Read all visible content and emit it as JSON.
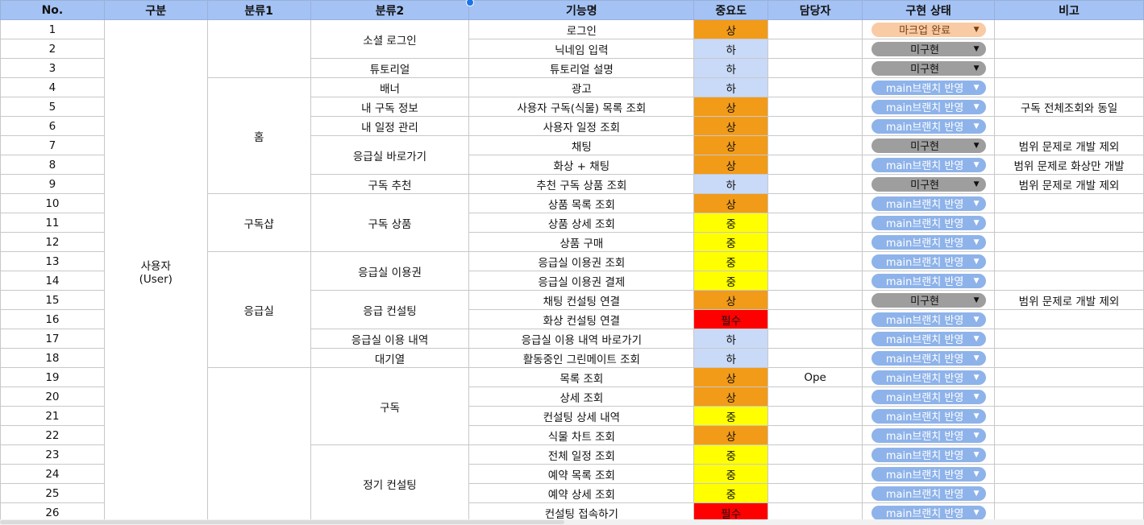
{
  "headers": [
    "No.",
    "구분",
    "분류1",
    "분류2",
    "기능명",
    "중요도",
    "담당자",
    "구현 상태",
    "비고"
  ],
  "colors": {
    "high": "#f29b18",
    "low": "#c9daf8",
    "mid": "#ffff00",
    "must": "#ff0000",
    "header": "#a4c2f4"
  },
  "statuses": {
    "mockup": "마크업 완료",
    "none": "미구현",
    "main": "main브랜치 반영"
  },
  "division": "사용자\n(User)",
  "cat1": [
    "",
    "홈",
    "구독샵",
    "응급실",
    ""
  ],
  "cat2": [
    "소셜 로그인",
    "튜토리얼",
    "배너",
    "내 구독 정보",
    "내 일정 관리",
    "응급실 바로가기",
    "구독 추천",
    "구독 상품",
    "응급실 이용권",
    "응급 컨설팅",
    "응급실 이용 내역",
    "대기열",
    "구독",
    "정기 컨설팅"
  ],
  "rows": [
    {
      "no": "1",
      "feature": "로그인",
      "priority": "상",
      "ptype": "high",
      "owner": "",
      "status": "마크업 완료",
      "stype": "mockup",
      "note": ""
    },
    {
      "no": "2",
      "feature": "닉네임 입력",
      "priority": "하",
      "ptype": "low",
      "owner": "",
      "status": "미구현",
      "stype": "none",
      "note": ""
    },
    {
      "no": "3",
      "feature": "튜토리얼 설명",
      "priority": "하",
      "ptype": "low",
      "owner": "",
      "status": "미구현",
      "stype": "none",
      "note": ""
    },
    {
      "no": "4",
      "feature": "광고",
      "priority": "하",
      "ptype": "low",
      "owner": "",
      "status": "main브랜치 반영",
      "stype": "main",
      "note": ""
    },
    {
      "no": "5",
      "feature": "사용자 구독(식물) 목록 조회",
      "priority": "상",
      "ptype": "high",
      "owner": "",
      "status": "main브랜치 반영",
      "stype": "main",
      "note": "구독 전체조회와 동일"
    },
    {
      "no": "6",
      "feature": "사용자 일정 조회",
      "priority": "상",
      "ptype": "high",
      "owner": "",
      "status": "main브랜치 반영",
      "stype": "main",
      "note": ""
    },
    {
      "no": "7",
      "feature": "채팅",
      "priority": "상",
      "ptype": "high",
      "owner": "",
      "status": "미구현",
      "stype": "none",
      "note": "범위 문제로 개발 제외"
    },
    {
      "no": "8",
      "feature": "화상 + 채팅",
      "priority": "상",
      "ptype": "high",
      "owner": "",
      "status": "main브랜치 반영",
      "stype": "main",
      "note": "범위 문제로 화상만 개발"
    },
    {
      "no": "9",
      "feature": "추천 구독 상품 조회",
      "priority": "하",
      "ptype": "low",
      "owner": "",
      "status": "미구현",
      "stype": "none",
      "note": "범위 문제로 개발 제외"
    },
    {
      "no": "10",
      "feature": "상품 목록 조회",
      "priority": "상",
      "ptype": "high",
      "owner": "",
      "status": "main브랜치 반영",
      "stype": "main",
      "note": ""
    },
    {
      "no": "11",
      "feature": "상품 상세 조회",
      "priority": "중",
      "ptype": "mid",
      "owner": "",
      "status": "main브랜치 반영",
      "stype": "main",
      "note": ""
    },
    {
      "no": "12",
      "feature": "상품 구매",
      "priority": "중",
      "ptype": "mid",
      "owner": "",
      "status": "main브랜치 반영",
      "stype": "main",
      "note": ""
    },
    {
      "no": "13",
      "feature": "응급실 이용권 조회",
      "priority": "중",
      "ptype": "mid",
      "owner": "",
      "status": "main브랜치 반영",
      "stype": "main",
      "note": ""
    },
    {
      "no": "14",
      "feature": "응급실 이용권 결제",
      "priority": "중",
      "ptype": "mid",
      "owner": "",
      "status": "main브랜치 반영",
      "stype": "main",
      "note": ""
    },
    {
      "no": "15",
      "feature": "채팅 컨설팅 연결",
      "priority": "상",
      "ptype": "high",
      "owner": "",
      "status": "미구현",
      "stype": "none",
      "note": "범위 문제로 개발 제외"
    },
    {
      "no": "16",
      "feature": "화상 컨설팅 연결",
      "priority": "필수",
      "ptype": "must",
      "owner": "",
      "status": "main브랜치 반영",
      "stype": "main",
      "note": ""
    },
    {
      "no": "17",
      "feature": "응급실 이용 내역 바로가기",
      "priority": "하",
      "ptype": "low",
      "owner": "",
      "status": "main브랜치 반영",
      "stype": "main",
      "note": ""
    },
    {
      "no": "18",
      "feature": "활동중인 그린메이트 조회",
      "priority": "하",
      "ptype": "low",
      "owner": "",
      "status": "main브랜치 반영",
      "stype": "main",
      "note": ""
    },
    {
      "no": "19",
      "feature": "목록 조회",
      "priority": "상",
      "ptype": "high",
      "owner": "Ope",
      "status": "main브랜치 반영",
      "stype": "main",
      "note": ""
    },
    {
      "no": "20",
      "feature": "상세 조회",
      "priority": "상",
      "ptype": "high",
      "owner": "",
      "status": "main브랜치 반영",
      "stype": "main",
      "note": ""
    },
    {
      "no": "21",
      "feature": "컨설팅 상세 내역",
      "priority": "중",
      "ptype": "mid",
      "owner": "",
      "status": "main브랜치 반영",
      "stype": "main",
      "note": ""
    },
    {
      "no": "22",
      "feature": "식물 차트 조회",
      "priority": "상",
      "ptype": "high",
      "owner": "",
      "status": "main브랜치 반영",
      "stype": "main",
      "note": ""
    },
    {
      "no": "23",
      "feature": "전체 일정 조회",
      "priority": "중",
      "ptype": "mid",
      "owner": "",
      "status": "main브랜치 반영",
      "stype": "main",
      "note": ""
    },
    {
      "no": "24",
      "feature": "예약 목록 조회",
      "priority": "중",
      "ptype": "mid",
      "owner": "",
      "status": "main브랜치 반영",
      "stype": "main",
      "note": ""
    },
    {
      "no": "25",
      "feature": "예약 상세 조회",
      "priority": "중",
      "ptype": "mid",
      "owner": "",
      "status": "main브랜치 반영",
      "stype": "main",
      "note": ""
    },
    {
      "no": "26",
      "feature": "컨설팅 접속하기",
      "priority": "필수",
      "ptype": "must",
      "owner": "",
      "status": "main브랜치 반영",
      "stype": "main",
      "note": ""
    }
  ]
}
